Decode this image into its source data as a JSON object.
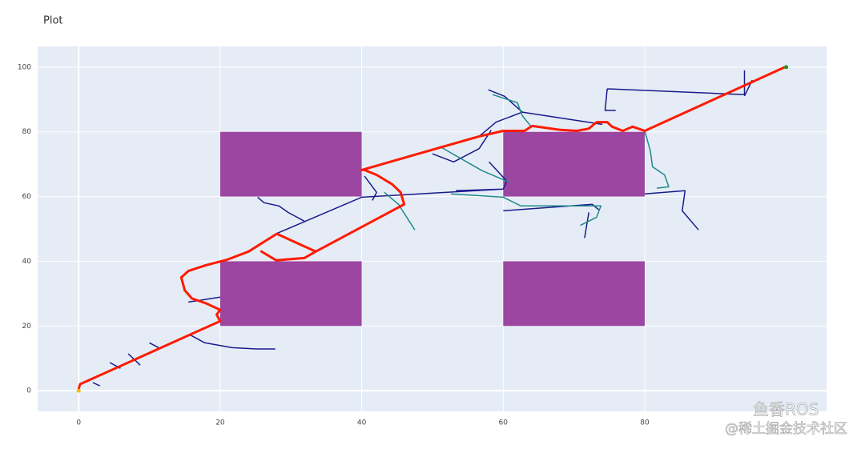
{
  "chart_data": {
    "type": "line",
    "title": "Plot",
    "xlim": [
      -5.8,
      105.7
    ],
    "ylim": [
      -6.4,
      106.4
    ],
    "xticks": [
      0,
      20,
      40,
      60,
      80
    ],
    "yticks": [
      0,
      20,
      40,
      60,
      80,
      100
    ],
    "grid": true,
    "obstacles": [
      [
        20,
        60,
        40,
        80
      ],
      [
        60,
        60,
        80,
        80
      ],
      [
        20,
        20,
        40,
        40
      ],
      [
        60,
        20,
        80,
        40
      ]
    ],
    "obstacle_color": "#9b47a1",
    "series": [
      {
        "color": "#1a1a8c",
        "width": 1.5,
        "x": [
          2,
          3,
          null,
          4.4,
          5.9,
          null,
          7,
          8.7,
          null,
          10,
          11.3,
          null,
          15.5,
          20,
          null,
          15.7,
          17.8,
          21.7,
          25.1,
          27.8,
          null,
          27.9,
          40,
          60,
          null,
          25.3,
          26.2,
          28.3,
          29.6,
          31.9,
          null,
          40.4,
          42.1,
          41.5,
          null,
          53.3,
          60,
          null,
          57.9,
          60.2,
          62.7,
          74,
          null,
          56.6,
          59,
          62.7,
          null,
          50,
          53,
          56.6,
          58.3,
          null,
          74.7,
          94.1,
          94.1,
          null,
          74.7,
          74.4,
          75.9,
          null,
          80,
          85.7,
          85.3,
          87.6,
          null,
          60,
          72.6,
          73.5,
          null,
          72.1,
          71.5,
          null,
          94.1,
          95.2,
          null,
          58,
          60.5,
          60
        ],
        "values": [
          2.5,
          1.5,
          null,
          8.7,
          6.9,
          null,
          11.4,
          7.9,
          null,
          14.8,
          13.3,
          null,
          27.4,
          28.9,
          null,
          17.3,
          14.8,
          13.3,
          12.9,
          12.9,
          null,
          48.5,
          59.8,
          62.3,
          null,
          59.8,
          58.1,
          57.1,
          55.1,
          52.4,
          null,
          66.3,
          61.3,
          58.8,
          null,
          61.8,
          62.3,
          null,
          93,
          91,
          86.1,
          82.3,
          null,
          78.6,
          83,
          86.1,
          null,
          73.2,
          70.7,
          74.8,
          80.5,
          null,
          93.3,
          91.5,
          99,
          null,
          93.3,
          86.6,
          86.6,
          null,
          60.8,
          61.8,
          55.6,
          49.7,
          null,
          55.6,
          57.6,
          55.9,
          null,
          55.1,
          47.2,
          null,
          91.1,
          96,
          null,
          70.7,
          64.8,
          62.3
        ]
      },
      {
        "color": "#1f8a8a",
        "width": 1.5,
        "x": [
          43.2,
          45.2,
          47.5,
          null,
          80,
          80.8,
          81.1,
          82.8,
          83.4,
          81.7,
          null,
          52.6,
          60,
          62.5,
          73.8,
          73.2,
          70.9,
          null,
          51,
          57,
          60.8,
          null,
          58.5,
          62,
          62.7,
          64
        ],
        "values": [
          61.3,
          57.6,
          49.7,
          null,
          80.3,
          74.1,
          69.2,
          66.7,
          63,
          62.6,
          null,
          60.8,
          59.8,
          57.1,
          57.1,
          53.6,
          51.1,
          null,
          75.5,
          68,
          64.5,
          null,
          91.5,
          89,
          85,
          81.5
        ]
      },
      {
        "color": "#ff1a00",
        "width": 3,
        "x": [
          0,
          0.2,
          20,
          19.5,
          20,
          18,
          16,
          15,
          14.5,
          15.5,
          18,
          21,
          24,
          28,
          33.5,
          46,
          45.5,
          44.3,
          42.1,
          40.4,
          40,
          56.6,
          60,
          63,
          64.1,
          68.1,
          70.4,
          72.1,
          73.2,
          74.7,
          75.4,
          76.9,
          78.3,
          80,
          99.8,
          null,
          25.7,
          27.9,
          31.9,
          33.5
        ],
        "values": [
          0.5,
          2,
          21.5,
          23.5,
          25,
          27,
          28.5,
          31,
          35,
          37,
          38.8,
          40.5,
          43,
          48.5,
          43,
          57.6,
          61.3,
          63.8,
          66.7,
          68.2,
          68.2,
          78.6,
          80.3,
          80.3,
          81.8,
          80.6,
          80.3,
          81,
          83,
          83,
          81.6,
          80.3,
          81.6,
          80.3,
          100,
          null,
          43.2,
          40.3,
          41,
          43
        ]
      },
      {
        "color": "#f5b800",
        "width": 0,
        "marker": 4,
        "x": [
          0
        ],
        "values": [
          0
        ]
      },
      {
        "color": "#1a9a1a",
        "width": 0,
        "marker": 4,
        "x": [
          100
        ],
        "values": [
          100
        ]
      }
    ],
    "watermark": [
      "鱼香ROS",
      "@稀土掘金技术社区"
    ]
  }
}
